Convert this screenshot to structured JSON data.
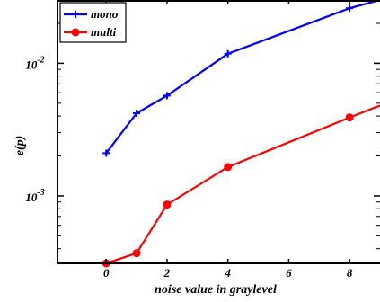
{
  "chart_data": {
    "type": "line",
    "xlabel": "noise value in graylevel",
    "ylabel": "e(p)",
    "y_scale": "log",
    "xlim": [
      -1.6,
      9
    ],
    "ylim": [
      0.00031,
      0.03
    ],
    "x_ticks": [
      0,
      2,
      4,
      6,
      8
    ],
    "x_tick_labels": [
      "0",
      "2",
      "4",
      "6",
      "8"
    ],
    "y_ticks": [
      0.001,
      0.01
    ],
    "y_tick_labels": [
      {
        "base": "10",
        "exp": "-3"
      },
      {
        "base": "10",
        "exp": "-2"
      }
    ],
    "grid": false,
    "legend_position": "top-left",
    "series": [
      {
        "name": "mono",
        "color": "#0000ff",
        "marker": "plus",
        "x": [
          0,
          1,
          2,
          4,
          8,
          9
        ],
        "y": [
          0.0021,
          0.0042,
          0.0057,
          0.0118,
          0.026,
          0.03
        ]
      },
      {
        "name": "multi",
        "color": "#ff0000",
        "marker": "circle",
        "x": [
          0,
          1,
          2,
          4,
          8,
          9
        ],
        "y": [
          0.00031,
          0.00037,
          0.00086,
          0.00165,
          0.0039,
          0.0048
        ]
      }
    ]
  }
}
